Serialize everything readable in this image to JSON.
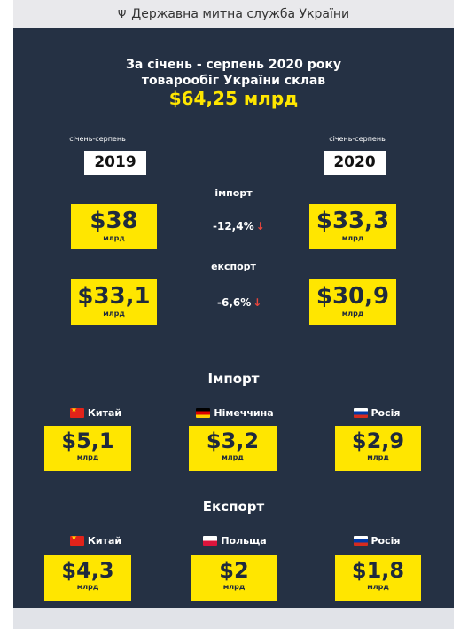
{
  "header": {
    "emblem_icon": "trident-icon",
    "title": "Державна митна служба України"
  },
  "headline": {
    "line1": "За січень - серпень 2020 року",
    "line2": "товарообіг України склав",
    "total": "$64,25 млрд"
  },
  "periods": {
    "left_label": "січень-серпень",
    "left_year": "2019",
    "right_label": "січень-серпень",
    "right_year": "2020"
  },
  "import_compare": {
    "label": "імпорт",
    "value_2019": "$38",
    "value_2020": "$33,3",
    "unit": "млрд",
    "change": "-12,4%",
    "change_direction": "down"
  },
  "export_compare": {
    "label": "експорт",
    "value_2019": "$33,1",
    "value_2020": "$30,9",
    "unit": "млрд",
    "change": "-6,6%",
    "change_direction": "down"
  },
  "import_partners": {
    "title": "Імпорт",
    "items": [
      {
        "country": "Китай",
        "flag": "china-flag",
        "value": "$5,1",
        "unit": "млрд"
      },
      {
        "country": "Німеччина",
        "flag": "germany-flag",
        "value": "$3,2",
        "unit": "млрд"
      },
      {
        "country": "Росія",
        "flag": "russia-flag",
        "value": "$2,9",
        "unit": "млрд"
      }
    ]
  },
  "export_partners": {
    "title": "Експорт",
    "items": [
      {
        "country": "Китай",
        "flag": "china-flag",
        "value": "$4,3",
        "unit": "млрд"
      },
      {
        "country": "Польща",
        "flag": "poland-flag",
        "value": "$2",
        "unit": "млрд"
      },
      {
        "country": "Росія",
        "flag": "russia-flag",
        "value": "$1,8",
        "unit": "млрд"
      }
    ]
  },
  "colors": {
    "panel_bg": "#253144",
    "accent_yellow": "#ffe600",
    "down_arrow": "#e8453c"
  }
}
